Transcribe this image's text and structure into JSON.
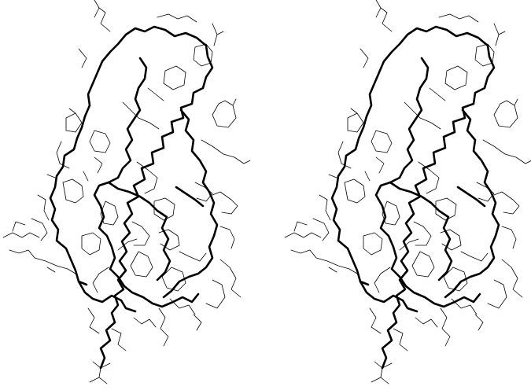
{
  "figure": {
    "type": "stereo-pair",
    "background": "#ffffff",
    "ink": "#000000",
    "panels": [
      {
        "name": "left-stereo-view"
      },
      {
        "name": "right-stereo-view"
      }
    ]
  }
}
